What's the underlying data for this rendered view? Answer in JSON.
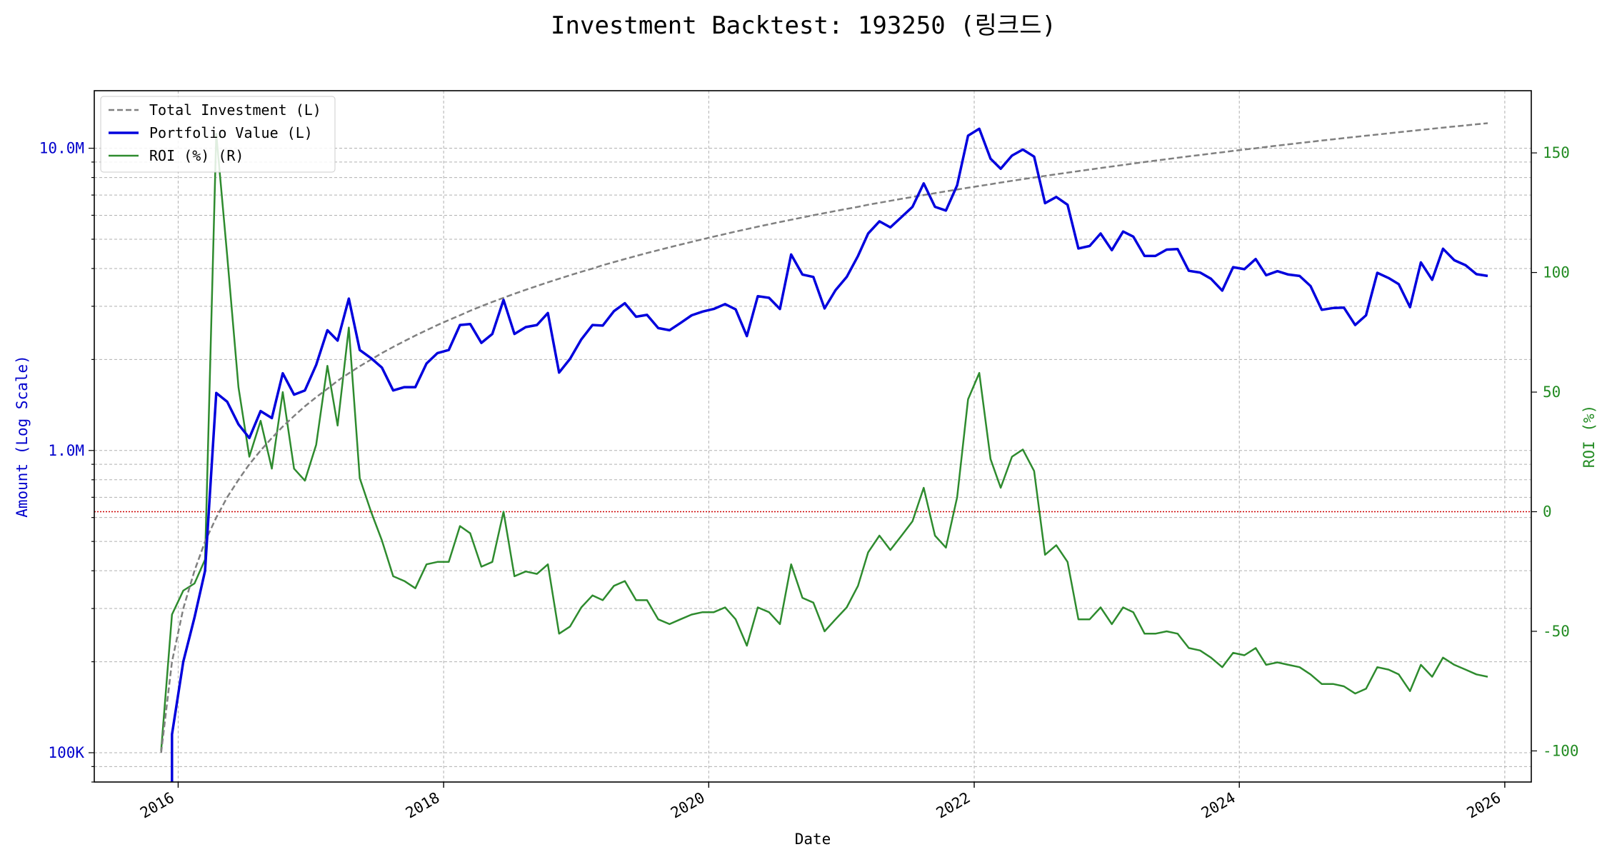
{
  "chart_data": {
    "type": "line",
    "title": "Investment Backtest: 193250 (링크드)",
    "xlabel": "Date",
    "ylabel_left": "Amount (Log Scale)",
    "ylabel_right": "ROI (%)",
    "left_scale": "log",
    "left_ylim": [
      80000,
      15500000
    ],
    "right_ylim": [
      -113,
      176
    ],
    "xlim": [
      "2015-05-15",
      "2026-03-15"
    ],
    "x_ticks": [
      "2016",
      "2018",
      "2020",
      "2022",
      "2024",
      "2026"
    ],
    "left_ticks": [
      {
        "value": 100000,
        "label": "100K"
      },
      {
        "value": 1000000,
        "label": "1.0M"
      },
      {
        "value": 10000000,
        "label": "10.0M"
      }
    ],
    "right_ticks": [
      -100,
      -50,
      0,
      50,
      100,
      150
    ],
    "grid": true,
    "legend_position": "top-left",
    "reference_line": {
      "axis": "right",
      "value": 0,
      "color": "#cc0000",
      "style": "dotted"
    },
    "legend": [
      {
        "label": "Total Investment (L)",
        "color": "#808080",
        "style": "dashed"
      },
      {
        "label": "Portfolio Value (L)",
        "color": "#0000dd",
        "style": "solid"
      },
      {
        "label": "ROI (%) (R)",
        "color": "#2e8b2e",
        "style": "solid"
      }
    ],
    "colors": {
      "left_axis": "#0000cc",
      "right_axis": "#228b22"
    },
    "x": [
      "2015-11-15",
      "2015-12-15",
      "2016-01-15",
      "2016-02-15",
      "2016-03-15",
      "2016-04-15",
      "2016-05-15",
      "2016-06-15",
      "2016-07-15",
      "2016-08-15",
      "2016-09-15",
      "2016-10-15",
      "2016-11-15",
      "2016-12-15",
      "2017-01-15",
      "2017-02-15",
      "2017-03-15",
      "2017-04-15",
      "2017-05-15",
      "2017-06-15",
      "2017-07-15",
      "2017-08-15",
      "2017-09-15",
      "2017-10-15",
      "2017-11-15",
      "2017-12-15",
      "2018-01-15",
      "2018-02-15",
      "2018-03-15",
      "2018-04-15",
      "2018-05-15",
      "2018-06-15",
      "2018-07-15",
      "2018-08-15",
      "2018-09-15",
      "2018-10-15",
      "2018-11-15",
      "2018-12-15",
      "2019-01-15",
      "2019-02-15",
      "2019-03-15",
      "2019-04-15",
      "2019-05-15",
      "2019-06-15",
      "2019-07-15",
      "2019-08-15",
      "2019-09-15",
      "2019-10-15",
      "2019-11-15",
      "2019-12-15",
      "2020-01-15",
      "2020-02-15",
      "2020-03-15",
      "2020-04-15",
      "2020-05-15",
      "2020-06-15",
      "2020-07-15",
      "2020-08-15",
      "2020-09-15",
      "2020-10-15",
      "2020-11-15",
      "2020-12-15",
      "2021-01-15",
      "2021-02-15",
      "2021-03-15",
      "2021-04-15",
      "2021-05-15",
      "2021-06-15",
      "2021-07-15",
      "2021-08-15",
      "2021-09-15",
      "2021-10-15",
      "2021-11-15",
      "2021-12-15",
      "2022-01-15",
      "2022-02-15",
      "2022-03-15",
      "2022-04-15",
      "2022-05-15",
      "2022-06-15",
      "2022-07-15",
      "2022-08-15",
      "2022-09-15",
      "2022-10-15",
      "2022-11-15",
      "2022-12-15",
      "2023-01-15",
      "2023-02-15",
      "2023-03-15",
      "2023-04-15",
      "2023-05-15",
      "2023-06-15",
      "2023-07-15",
      "2023-08-15",
      "2023-09-15",
      "2023-10-15",
      "2023-11-15",
      "2023-12-15",
      "2024-01-15",
      "2024-02-15",
      "2024-03-15",
      "2024-04-15",
      "2024-05-15",
      "2024-06-15",
      "2024-07-15",
      "2024-08-15",
      "2024-09-15",
      "2024-10-15",
      "2024-11-15",
      "2024-12-15",
      "2025-01-15",
      "2025-02-15",
      "2025-03-15",
      "2025-04-15",
      "2025-05-15",
      "2025-06-15",
      "2025-07-15",
      "2025-08-15",
      "2025-09-15",
      "2025-10-15",
      "2025-11-15"
    ],
    "series": [
      {
        "name": "Total Investment (L)",
        "axis": "left",
        "values": [
          100000,
          200000,
          300000,
          400000,
          500000,
          600000,
          700000,
          800000,
          900000,
          1000000,
          1100000,
          1200000,
          1300000,
          1400000,
          1500000,
          1600000,
          1700000,
          1800000,
          1900000,
          2000000,
          2100000,
          2200000,
          2300000,
          2400000,
          2500000,
          2600000,
          2700000,
          2800000,
          2900000,
          3000000,
          3100000,
          3200000,
          3300000,
          3400000,
          3500000,
          3600000,
          3700000,
          3800000,
          3900000,
          4000000,
          4100000,
          4200000,
          4300000,
          4400000,
          4500000,
          4600000,
          4700000,
          4800000,
          4900000,
          5000000,
          5100000,
          5200000,
          5300000,
          5400000,
          5500000,
          5600000,
          5700000,
          5800000,
          5900000,
          6000000,
          6100000,
          6200000,
          6300000,
          6400000,
          6500000,
          6600000,
          6700000,
          6800000,
          6900000,
          7000000,
          7100000,
          7200000,
          7300000,
          7400000,
          7500000,
          7600000,
          7700000,
          7800000,
          7900000,
          8000000,
          8100000,
          8200000,
          8300000,
          8400000,
          8500000,
          8600000,
          8700000,
          8800000,
          8900000,
          9000000,
          9100000,
          9200000,
          9300000,
          9400000,
          9500000,
          9600000,
          9700000,
          9800000,
          9900000,
          10000000,
          10100000,
          10200000,
          10300000,
          10400000,
          10500000,
          10600000,
          10700000,
          10800000,
          10900000,
          11000000,
          11100000,
          11200000,
          11300000,
          11400000,
          11500000,
          11600000,
          11700000,
          11800000,
          11900000,
          12000000,
          12100000
        ]
      },
      {
        "name": "Portfolio Value (L)",
        "axis": "left",
        "values": [
          null,
          115000,
          200000,
          280000,
          400000,
          1550000,
          1450000,
          1220000,
          1100000,
          1350000,
          1280000,
          1800000,
          1530000,
          1580000,
          1920000,
          2500000,
          2310000,
          3180000,
          2150000,
          2020000,
          1880000,
          1580000,
          1620000,
          1620000,
          1940000,
          2100000,
          2150000,
          2600000,
          2620000,
          2270000,
          2430000,
          3150000,
          2430000,
          2560000,
          2600000,
          2850000,
          1810000,
          2010000,
          2330000,
          2600000,
          2590000,
          2890000,
          3070000,
          2770000,
          2810000,
          2540000,
          2500000,
          2640000,
          2800000,
          2880000,
          2940000,
          3050000,
          2930000,
          2390000,
          3240000,
          3200000,
          2940000,
          4450000,
          3820000,
          3750000,
          2950000,
          3390000,
          3750000,
          4400000,
          5220000,
          5730000,
          5470000,
          5920000,
          6400000,
          7650000,
          6400000,
          6220000,
          7540000,
          11000000,
          11600000,
          9230000,
          8550000,
          9450000,
          9900000,
          9380000,
          6580000,
          6900000,
          6500000,
          4660000,
          4750000,
          5220000,
          4600000,
          5300000,
          5100000,
          4400000,
          4400000,
          4620000,
          4640000,
          3930000,
          3880000,
          3700000,
          3380000,
          4040000,
          3980000,
          4300000,
          3800000,
          3920000,
          3820000,
          3780000,
          3500000,
          2920000,
          2960000,
          2970000,
          2600000,
          2800000,
          3870000,
          3720000,
          3550000,
          2980000,
          4190000,
          3670000,
          4650000,
          4260000,
          4100000,
          3830000,
          3780000
        ]
      },
      {
        "name": "ROI (%) (R)",
        "axis": "right",
        "values": [
          -100,
          -43,
          -33,
          -30,
          -20,
          158,
          107,
          52,
          23,
          38,
          18,
          50,
          18,
          13,
          28,
          61,
          36,
          77,
          14,
          0,
          -12,
          -27,
          -29,
          -32,
          -22,
          -21,
          -21,
          -6,
          -9,
          -23,
          -21,
          0,
          -27,
          -25,
          -26,
          -22,
          -51,
          -48,
          -40,
          -35,
          -37,
          -31,
          -29,
          -37,
          -37,
          -45,
          -47,
          -45,
          -43,
          -42,
          -42,
          -40,
          -45,
          -56,
          -40,
          -42,
          -47,
          -22,
          -36,
          -38,
          -50,
          -45,
          -40,
          -31,
          -17,
          -10,
          -16,
          -10,
          -4,
          10,
          -10,
          -15,
          6,
          47,
          58,
          22,
          10,
          23,
          26,
          17,
          -18,
          -14,
          -21,
          -45,
          -45,
          -40,
          -47,
          -40,
          -42,
          -51,
          -51,
          -50,
          -51,
          -57,
          -58,
          -61,
          -65,
          -59,
          -60,
          -57,
          -64,
          -63,
          -64,
          -65,
          -68,
          -72,
          -72,
          -73,
          -76,
          -74,
          -65,
          -66,
          -68,
          -75,
          -64,
          -69,
          -61,
          -64,
          -66,
          -68,
          -69
        ]
      }
    ]
  }
}
